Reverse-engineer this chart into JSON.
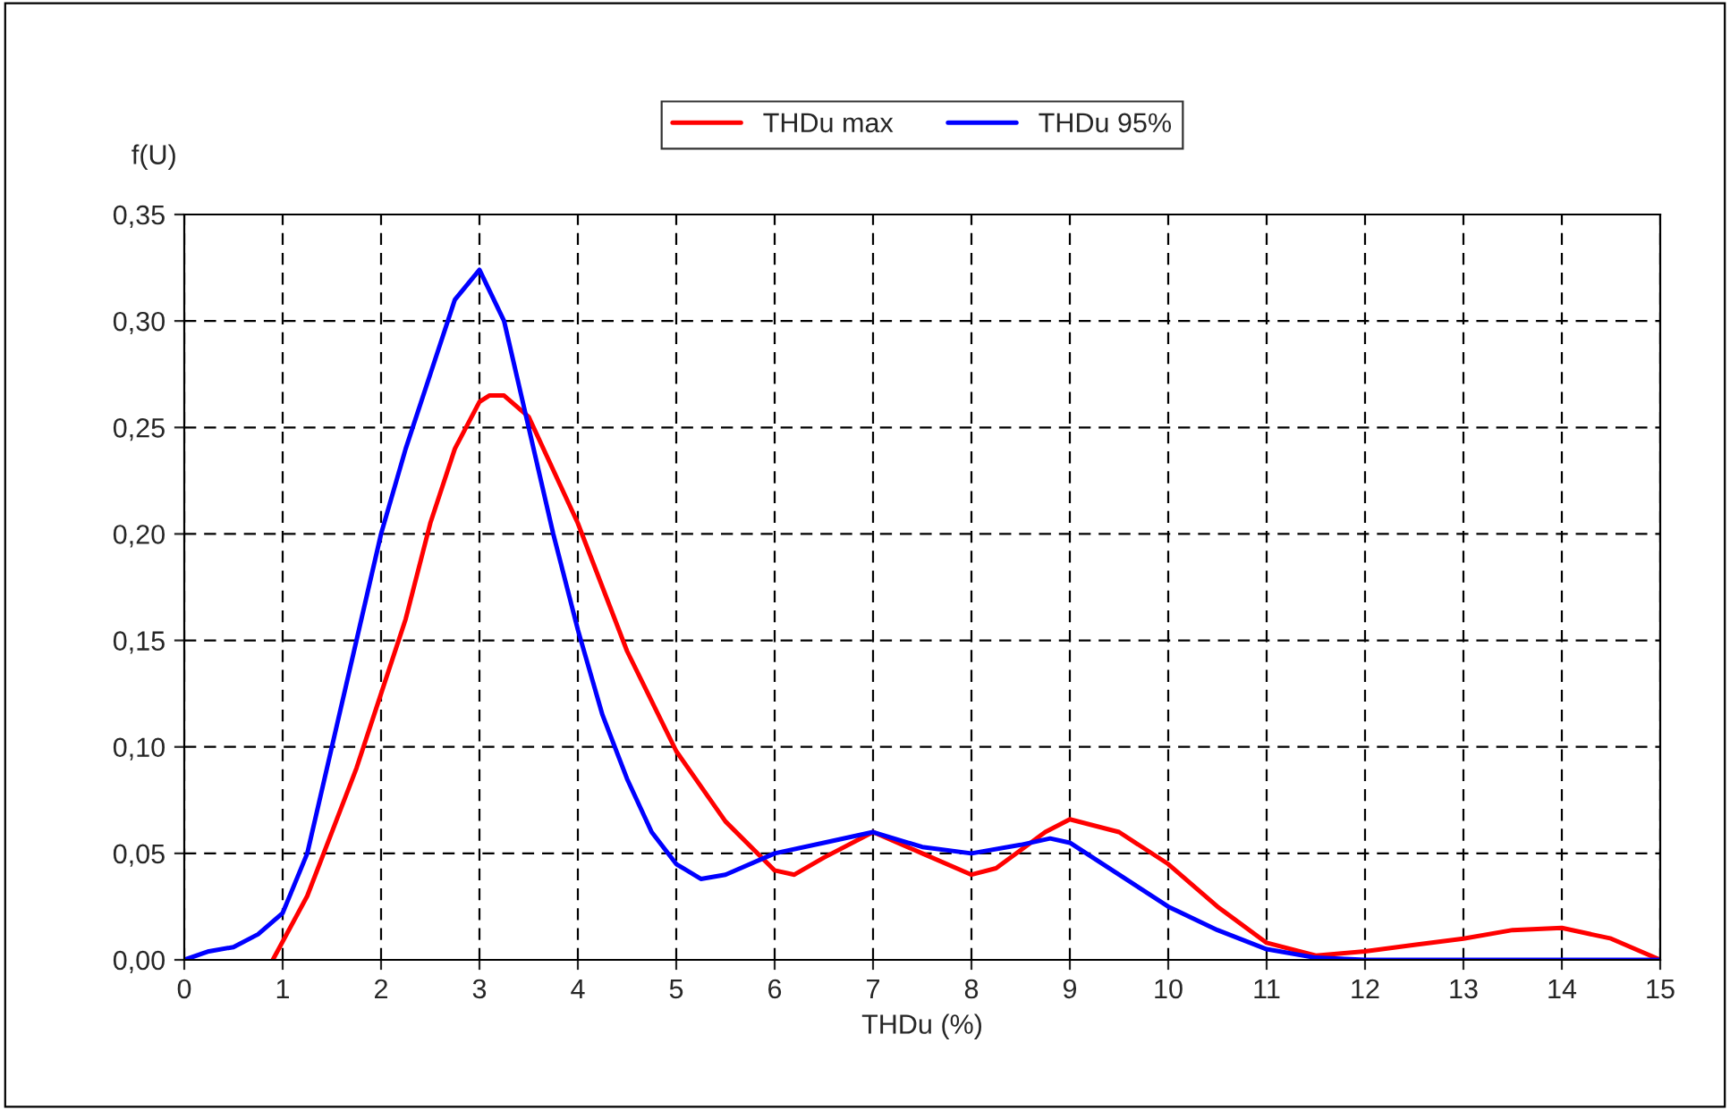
{
  "chart_data": {
    "type": "line",
    "xlabel": "THDu (%)",
    "ylabel": "f(U)",
    "legend": "top",
    "grid": true,
    "line_style": "solid",
    "marker": "none",
    "xlim": [
      0,
      15
    ],
    "xticks": [
      0,
      1,
      2,
      3,
      4,
      5,
      6,
      7,
      8,
      9,
      10,
      11,
      12,
      13,
      14,
      15
    ],
    "ylim": [
      0,
      0.35
    ],
    "yticks": [
      {
        "value": 0,
        "label": "0,00"
      },
      {
        "value": 0.05,
        "label": "0,05"
      },
      {
        "value": 0.1,
        "label": "0,10"
      },
      {
        "value": 0.15,
        "label": "0,15"
      },
      {
        "value": 0.2,
        "label": "0,20"
      },
      {
        "value": 0.25,
        "label": "0,25"
      },
      {
        "value": 0.3,
        "label": "0,30"
      },
      {
        "value": 0.35,
        "label": "0,35"
      }
    ],
    "series": [
      {
        "name": "THDu max",
        "color": "#ff0000",
        "x": [
          0.9,
          1.25,
          1.5,
          1.75,
          2,
          2.25,
          2.5,
          2.75,
          3,
          3.1,
          3.25,
          3.5,
          4,
          4.5,
          5,
          5.5,
          6,
          6.2,
          6.5,
          7,
          7.5,
          8,
          8.25,
          8.75,
          9,
          9.5,
          10,
          10.5,
          11,
          11.5,
          12,
          12.5,
          13,
          13.5,
          14,
          14.5,
          15
        ],
        "values": [
          0,
          0.03,
          0.06,
          0.09,
          0.125,
          0.16,
          0.205,
          0.24,
          0.262,
          0.265,
          0.265,
          0.255,
          0.205,
          0.145,
          0.098,
          0.065,
          0.042,
          0.04,
          0.048,
          0.06,
          0.05,
          0.04,
          0.043,
          0.06,
          0.066,
          0.06,
          0.045,
          0.025,
          0.008,
          0.002,
          0.004,
          0.007,
          0.01,
          0.014,
          0.015,
          0.01,
          0
        ]
      },
      {
        "name": "THDu 95%",
        "color": "#0000ff",
        "x": [
          0,
          0.25,
          0.5,
          0.75,
          1,
          1.25,
          1.5,
          1.75,
          2,
          2.25,
          2.5,
          2.75,
          3,
          3.25,
          3.5,
          3.75,
          4,
          4.25,
          4.5,
          4.75,
          5,
          5.25,
          5.5,
          6,
          6.5,
          7,
          7.5,
          8,
          8.5,
          8.8,
          9,
          9.5,
          10,
          10.5,
          11,
          11.5,
          12,
          15
        ],
        "values": [
          0,
          0.004,
          0.006,
          0.012,
          0.022,
          0.05,
          0.1,
          0.15,
          0.2,
          0.24,
          0.275,
          0.31,
          0.324,
          0.3,
          0.25,
          0.2,
          0.155,
          0.115,
          0.085,
          0.06,
          0.045,
          0.038,
          0.04,
          0.05,
          0.055,
          0.06,
          0.053,
          0.05,
          0.054,
          0.057,
          0.055,
          0.04,
          0.025,
          0.014,
          0.005,
          0.001,
          0,
          0
        ]
      }
    ]
  }
}
